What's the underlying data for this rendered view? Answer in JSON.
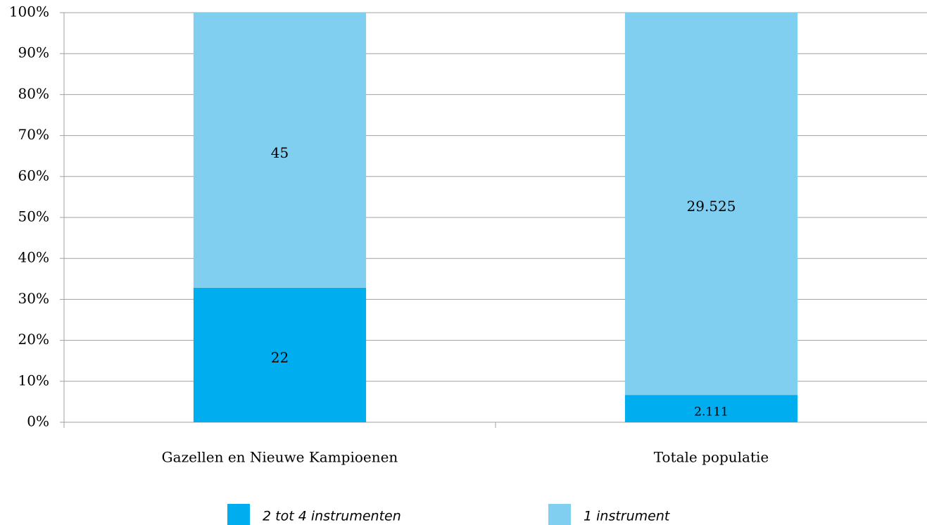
{
  "chart_data": {
    "type": "percent_stacked_bar",
    "categories": [
      "Gazellen en Nieuwe Kampioenen",
      "Totale populatie"
    ],
    "series": [
      {
        "name": "2 tot 4 instrumenten",
        "color": "#00adef",
        "values": [
          22,
          2111
        ],
        "value_labels": [
          "22",
          "2.111"
        ]
      },
      {
        "name": "1 instrument",
        "color": "#80cff0",
        "values": [
          45,
          29525
        ],
        "value_labels": [
          "45",
          "29.525"
        ]
      }
    ],
    "ylim": [
      0,
      100
    ],
    "yticks": [
      {
        "value": 0,
        "label": "0%"
      },
      {
        "value": 10,
        "label": "10%"
      },
      {
        "value": 20,
        "label": "20%"
      },
      {
        "value": 30,
        "label": "30%"
      },
      {
        "value": 40,
        "label": "40%"
      },
      {
        "value": 50,
        "label": "50%"
      },
      {
        "value": 60,
        "label": "60%"
      },
      {
        "value": 70,
        "label": "70%"
      },
      {
        "value": 80,
        "label": "80%"
      },
      {
        "value": 90,
        "label": "90%"
      },
      {
        "value": 100,
        "label": "100%"
      }
    ],
    "grid": true
  }
}
